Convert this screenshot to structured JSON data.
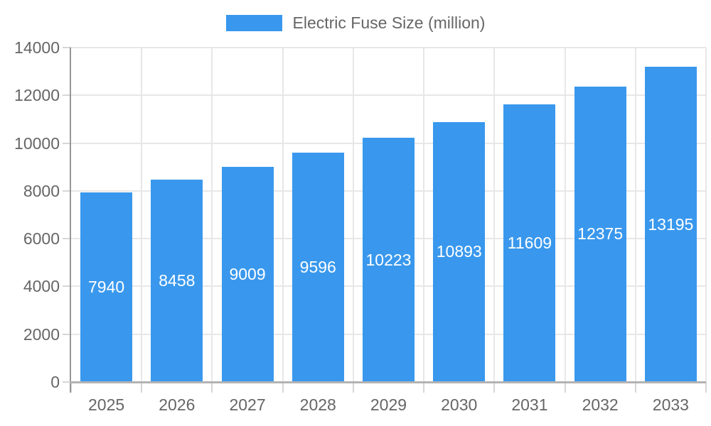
{
  "legend": {
    "label": "Electric Fuse Size (million)"
  },
  "colors": {
    "bar": "#3998ED",
    "bar_label_text": "#ffffff",
    "grid": "#e7e7e7",
    "y_axis_line": "#969696",
    "x_axis_line": "#b3b3b3",
    "tick": "#d6d6d6",
    "axis_text": "#666666",
    "background": "#ffffff"
  },
  "chart_data": {
    "type": "bar",
    "title": "Electric Fuse Size (million)",
    "series_name": "Electric Fuse Size (million)",
    "categories": [
      "2025",
      "2026",
      "2027",
      "2028",
      "2029",
      "2030",
      "2031",
      "2032",
      "2033"
    ],
    "values": [
      7940,
      8458,
      9009,
      9596,
      10223,
      10893,
      11609,
      12375,
      13195
    ],
    "xlabel": "",
    "ylabel": "",
    "ylim": [
      0,
      14000
    ],
    "yticks": [
      0,
      2000,
      4000,
      6000,
      8000,
      10000,
      12000,
      14000
    ],
    "grid": true,
    "legend_position": "top-center",
    "value_labels": "inside-center"
  }
}
